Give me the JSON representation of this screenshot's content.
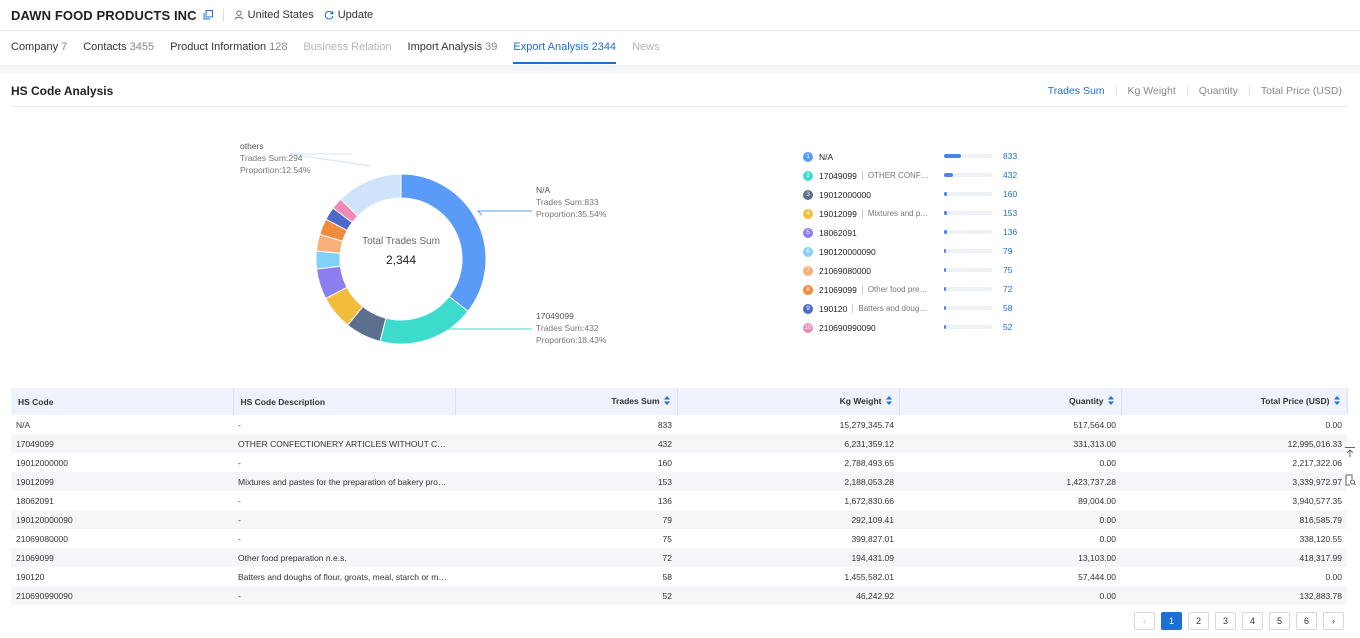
{
  "header": {
    "company_name": "DAWN FOOD PRODUCTS INC",
    "country": "United States",
    "update_label": "Update"
  },
  "tabs": [
    {
      "label": "Company",
      "count": "7",
      "state": "normal"
    },
    {
      "label": "Contacts",
      "count": "3455",
      "state": "normal"
    },
    {
      "label": "Product Information",
      "count": "128",
      "state": "normal"
    },
    {
      "label": "Business Relation",
      "count": "",
      "state": "disabled"
    },
    {
      "label": "Import Analysis",
      "count": "39",
      "state": "normal"
    },
    {
      "label": "Export Analysis",
      "count": "2344",
      "state": "active"
    },
    {
      "label": "News",
      "count": "",
      "state": "disabled"
    }
  ],
  "section": {
    "title": "HS Code Analysis",
    "metric_tabs": [
      "Trades Sum",
      "Kg Weight",
      "Quantity",
      "Total Price (USD)"
    ],
    "active_metric": "Trades Sum"
  },
  "chart_data": {
    "type": "pie",
    "title": "Total Trades Sum",
    "total": "2,344",
    "slices": [
      {
        "label": "N/A",
        "value": 833,
        "color": "#5b9bf8"
      },
      {
        "label": "17049099",
        "value": 432,
        "color": "#3ddbcb"
      },
      {
        "label": "19012000000",
        "value": 160,
        "color": "#5b6f8e"
      },
      {
        "label": "19012099",
        "value": 153,
        "color": "#f3bd3c"
      },
      {
        "label": "18062091",
        "value": 136,
        "color": "#8b7ff0"
      },
      {
        "label": "190120000090",
        "value": 79,
        "color": "#7fd1f7"
      },
      {
        "label": "21069080000",
        "value": 75,
        "color": "#f8b07a"
      },
      {
        "label": "21069099",
        "value": 72,
        "color": "#f08a3e"
      },
      {
        "label": "190120",
        "value": 58,
        "color": "#4e68c9"
      },
      {
        "label": "210690990090",
        "value": 52,
        "color": "#f089b8"
      },
      {
        "label": "others",
        "value": 294,
        "color": "#cfe4fb"
      }
    ],
    "callouts": [
      {
        "title": "others",
        "line1": "Trades Sum:294",
        "line2": "Proportion:12.54%"
      },
      {
        "title": "N/A",
        "line1": "Trades Sum:833",
        "line2": "Proportion:35.54%"
      },
      {
        "title": "17049099",
        "line1": "Trades Sum:432",
        "line2": "Proportion:18.43%"
      }
    ]
  },
  "legend": [
    {
      "rank": "1",
      "code": "N/A",
      "desc": "",
      "value": 833,
      "color": "#5b9bf8"
    },
    {
      "rank": "2",
      "code": "17049099",
      "desc": "OTHER CONFECTIONERY",
      "value": 432,
      "color": "#3ddbcb"
    },
    {
      "rank": "3",
      "code": "19012000000",
      "desc": "",
      "value": 160,
      "color": "#5b6f8e"
    },
    {
      "rank": "4",
      "code": "19012099",
      "desc": "Mixtures and pastes",
      "value": 153,
      "color": "#f3bd3c"
    },
    {
      "rank": "5",
      "code": "18062091",
      "desc": "",
      "value": 136,
      "color": "#8b7ff0"
    },
    {
      "rank": "6",
      "code": "190120000090",
      "desc": "",
      "value": 79,
      "color": "#7fd1f7"
    },
    {
      "rank": "7",
      "code": "21069080000",
      "desc": "",
      "value": 75,
      "color": "#f8b07a"
    },
    {
      "rank": "8",
      "code": "21069099",
      "desc": "Other food preparation",
      "value": 72,
      "color": "#f08a3e"
    },
    {
      "rank": "9",
      "code": "190120",
      "desc": "Batters and doughs",
      "value": 58,
      "color": "#4e68c9"
    },
    {
      "rank": "10",
      "code": "210690990090",
      "desc": "",
      "value": 52,
      "color": "#f089b8"
    }
  ],
  "table": {
    "columns": [
      "HS Code",
      "HS Code Description",
      "Trades Sum",
      "Kg Weight",
      "Quantity",
      "Total Price (USD)"
    ],
    "rows": [
      [
        "N/A",
        "-",
        "833",
        "15,279,345.74",
        "517,564.00",
        "0.00"
      ],
      [
        "17049099",
        "OTHER CONFECTIONERY ARTICLES WITHOUT COCOA",
        "432",
        "6,231,359.12",
        "331,313.00",
        "12,995,016.33"
      ],
      [
        "19012000000",
        "-",
        "160",
        "2,788,493.65",
        "0.00",
        "2,217,322.06"
      ],
      [
        "19012099",
        "Mixtures and pastes for the preparation of bakery products",
        "153",
        "2,188,053.28",
        "1,423,737.28",
        "3,339,972.97"
      ],
      [
        "18062091",
        "-",
        "136",
        "1,672,830.66",
        "89,004.00",
        "3,940,577.35"
      ],
      [
        "190120000090",
        "-",
        "79",
        "292,109.41",
        "0.00",
        "816,585.79"
      ],
      [
        "21069080000",
        "-",
        "75",
        "399,827.01",
        "0.00",
        "338,120.55"
      ],
      [
        "21069099",
        "Other food preparation n.e.s.",
        "72",
        "194,431.09",
        "13,103.00",
        "418,317.99"
      ],
      [
        "190120",
        "Batters and doughs of flour, groats, meal, starch or malt extract",
        "58",
        "1,455,582.01",
        "57,444.00",
        "0.00"
      ],
      [
        "210690990090",
        "-",
        "52",
        "46,242.92",
        "0.00",
        "132,883.78"
      ]
    ]
  },
  "pagination": {
    "pages": [
      "1",
      "2",
      "3",
      "4",
      "5",
      "6"
    ],
    "current": "1",
    "prev_symbol": "‹",
    "next_symbol": "›"
  }
}
